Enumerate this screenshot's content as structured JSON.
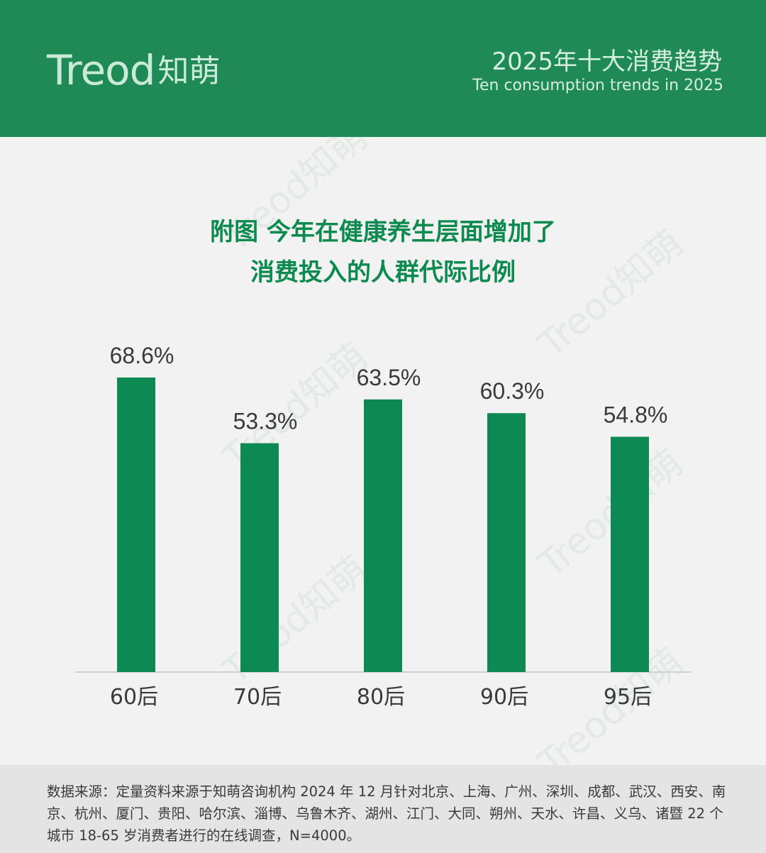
{
  "header": {
    "logo_text": "Treod",
    "logo_cn": "知萌",
    "trend_title": "2025年十大消费趋势",
    "trend_subtitle": "Ten consumption trends in 2025"
  },
  "chart_title": {
    "line1": "附图 今年在健康养生层面增加了",
    "line2": "消费投入的人群代际比例"
  },
  "chart_data": {
    "type": "bar",
    "categories": [
      "60后",
      "70后",
      "80后",
      "90后",
      "95后"
    ],
    "values": [
      68.6,
      53.3,
      63.5,
      60.3,
      54.8
    ],
    "labels": [
      "68.6%",
      "53.3%",
      "63.5%",
      "60.3%",
      "54.8%"
    ],
    "ylim": [
      0,
      100
    ],
    "color": "#0d8a53",
    "grid": false,
    "legend": "none"
  },
  "footer": {
    "source": "数据来源：定量资料来源于知萌咨询机构 2024 年 12 月针对北京、上海、广州、深圳、成都、武汉、西安、南京、杭州、厦门、贵阳、哈尔滨、淄博、乌鲁木齐、湖州、江门、大同、朔州、天水、许昌、义乌、诸暨 22 个城市 18-65 岁消费者进行的在线调查，N=4000。"
  },
  "watermark": "Treod知萌"
}
